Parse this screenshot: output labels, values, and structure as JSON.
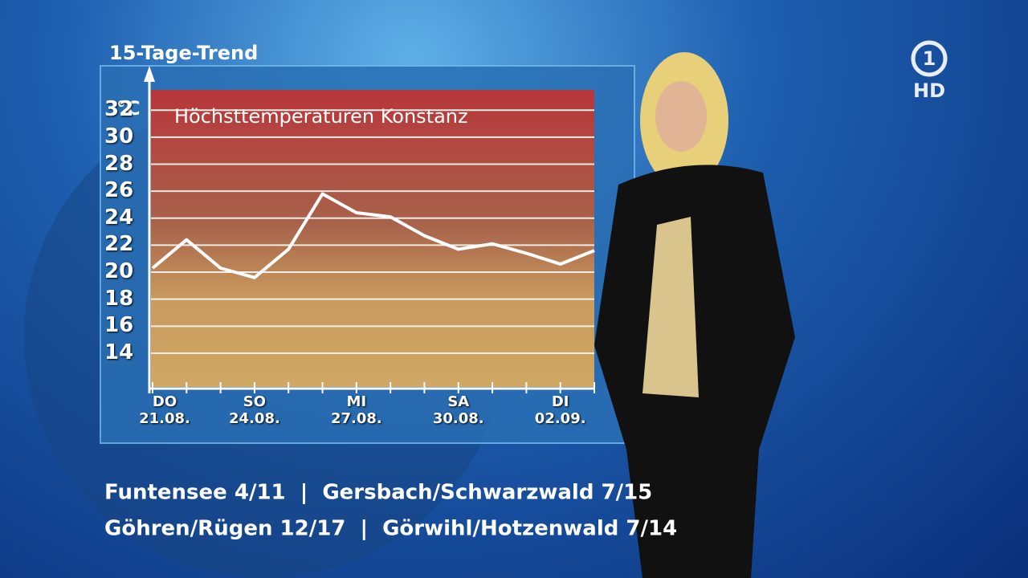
{
  "chart_data": {
    "type": "line",
    "title": "15-Tage-Trend",
    "subtitle": "Höchsttemperaturen Konstanz",
    "y_label": "°C",
    "categories": [
      "DO\n21.08.",
      null,
      null,
      "SO\n24.08.",
      null,
      null,
      "MI\n27.08.",
      null,
      null,
      "SA\n30.08.",
      null,
      null,
      "DI\n02.09.",
      null
    ],
    "series": [
      {
        "color": "#ffffff",
        "values": [
          20.3,
          22.4,
          20.3,
          19.6,
          21.7,
          25.8,
          24.4,
          24.1,
          22.7,
          21.7,
          22.1,
          21.4,
          20.6,
          21.6
        ]
      }
    ],
    "ylim": [
      11.5,
      33.5
    ],
    "yticks": [
      14,
      16,
      18,
      20,
      22,
      24,
      26,
      28,
      30,
      32
    ],
    "grid": true
  },
  "ticker": {
    "lines": [
      "Funtensee 4/11  |  Gersbach/Schwarzwald 7/15",
      "Göhren/Rügen 12/17  |  Görwihl/Hotzenwald 7/14"
    ]
  },
  "logo": {
    "number": "1",
    "label": "HD"
  }
}
